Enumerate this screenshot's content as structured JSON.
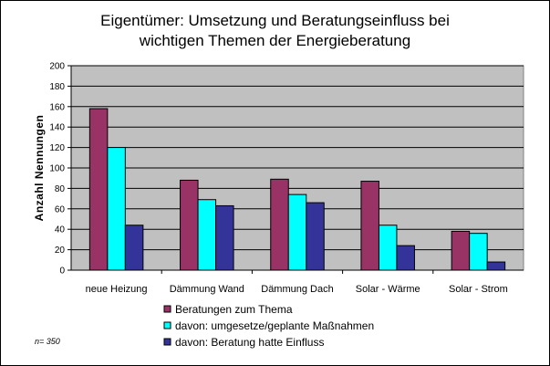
{
  "chart_data": {
    "type": "bar",
    "title": "Eigentümer: Umsetzung und Beratungseinfluss bei wichtigen Themen der Energieberatung",
    "title_lines": [
      "Eigentümer: Umsetzung und Beratungseinfluss bei",
      "wichtigen Themen der Energieberatung"
    ],
    "ylabel": "Anzahl Nennungen",
    "xlabel": "",
    "ylim": [
      0,
      200
    ],
    "yticks": [
      0,
      20,
      40,
      60,
      80,
      100,
      120,
      140,
      160,
      180,
      200
    ],
    "grid": true,
    "legend_position": "bottom",
    "categories": [
      "neue Heizung",
      "Dämmung Wand",
      "Dämmung Dach",
      "Solar - Wärme",
      "Solar - Strom"
    ],
    "series": [
      {
        "name": "Beratungen zum Thema",
        "color": "#993366",
        "values": [
          158,
          88,
          89,
          87,
          38
        ]
      },
      {
        "name": "davon: umgesetze/geplante Maßnahmen",
        "color": "#00FFFF",
        "values": [
          120,
          69,
          74,
          44,
          36
        ]
      },
      {
        "name": "davon: Beratung hatte Einfluss",
        "color": "#333399",
        "values": [
          44,
          63,
          66,
          24,
          8
        ]
      }
    ],
    "plot_background": "#C0C0C0",
    "note": "n= 350"
  }
}
